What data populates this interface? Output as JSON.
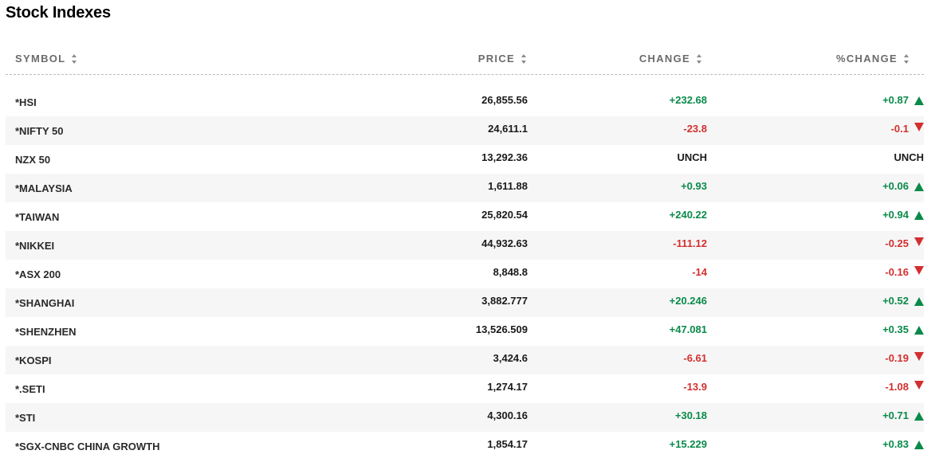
{
  "title": "Stock Indexes",
  "columns": {
    "symbol": "SYMBOL",
    "price": "PRICE",
    "change": "CHANGE",
    "pct_change": "%CHANGE"
  },
  "colors": {
    "positive": "#0a8a4a",
    "negative": "#d32f2f"
  },
  "rows": [
    {
      "symbol": "*HSI",
      "price": "26,855.56",
      "change": "+232.68",
      "pct": "+0.87",
      "direction": "up"
    },
    {
      "symbol": "*NIFTY 50",
      "price": "24,611.1",
      "change": "-23.8",
      "pct": "-0.1",
      "direction": "down"
    },
    {
      "symbol": "NZX 50",
      "price": "13,292.36",
      "change": "UNCH",
      "pct": "UNCH",
      "direction": "none"
    },
    {
      "symbol": "*MALAYSIA",
      "price": "1,611.88",
      "change": "+0.93",
      "pct": "+0.06",
      "direction": "up"
    },
    {
      "symbol": "*TAIWAN",
      "price": "25,820.54",
      "change": "+240.22",
      "pct": "+0.94",
      "direction": "up"
    },
    {
      "symbol": "*NIKKEI",
      "price": "44,932.63",
      "change": "-111.12",
      "pct": "-0.25",
      "direction": "down"
    },
    {
      "symbol": "*ASX 200",
      "price": "8,848.8",
      "change": "-14",
      "pct": "-0.16",
      "direction": "down"
    },
    {
      "symbol": "*SHANGHAI",
      "price": "3,882.777",
      "change": "+20.246",
      "pct": "+0.52",
      "direction": "up"
    },
    {
      "symbol": "*SHENZHEN",
      "price": "13,526.509",
      "change": "+47.081",
      "pct": "+0.35",
      "direction": "up"
    },
    {
      "symbol": "*KOSPI",
      "price": "3,424.6",
      "change": "-6.61",
      "pct": "-0.19",
      "direction": "down"
    },
    {
      "symbol": "*.SETI",
      "price": "1,274.17",
      "change": "-13.9",
      "pct": "-1.08",
      "direction": "down"
    },
    {
      "symbol": "*STI",
      "price": "4,300.16",
      "change": "+30.18",
      "pct": "+0.71",
      "direction": "up"
    },
    {
      "symbol": "*SGX-CNBC CHINA GROWTH",
      "price": "1,854.17",
      "change": "+15.229",
      "pct": "+0.83",
      "direction": "up"
    }
  ]
}
